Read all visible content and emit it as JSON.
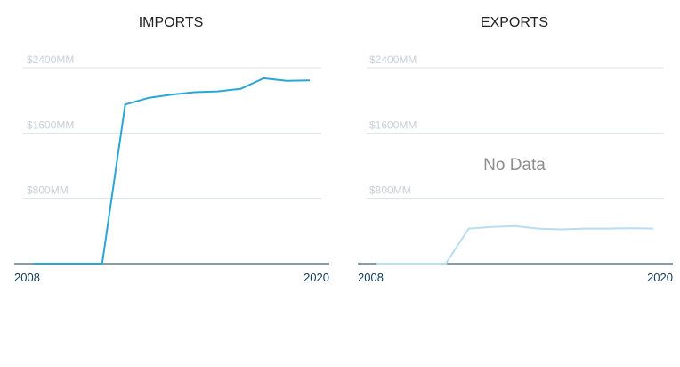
{
  "chart_data": [
    {
      "type": "line",
      "title": "IMPORTS",
      "ylim": [
        0,
        2400
      ],
      "yticks": [
        800,
        1600,
        2400
      ],
      "ytick_labels": [
        "$800MM",
        "$1600MM",
        "$2400MM"
      ],
      "xlim": [
        2008,
        2020
      ],
      "xtick_labels": [
        "2008",
        "2020"
      ],
      "grid": true,
      "series": [
        {
          "color": "#2aa6d6",
          "x": [
            2008,
            2009,
            2010,
            2011,
            2012,
            2013,
            2014,
            2015,
            2016,
            2017,
            2018,
            2019,
            2020
          ],
          "y": [
            0,
            0,
            0,
            0,
            1950,
            2030,
            2070,
            2100,
            2110,
            2140,
            2270,
            2240,
            2245
          ]
        }
      ],
      "no_data_text": ""
    },
    {
      "type": "line",
      "title": "EXPORTS",
      "ylim": [
        0,
        2400
      ],
      "yticks": [
        800,
        1600,
        2400
      ],
      "ytick_labels": [
        "$800MM",
        "$1600MM",
        "$2400MM"
      ],
      "xlim": [
        2008,
        2020
      ],
      "xtick_labels": [
        "2008",
        "2020"
      ],
      "grid": true,
      "series": [
        {
          "color": "#b7def0",
          "x": [
            2008,
            2009,
            2010,
            2011,
            2012,
            2013,
            2014,
            2015,
            2016,
            2017,
            2018,
            2019,
            2020
          ],
          "y": [
            0,
            0,
            0,
            0,
            430,
            450,
            460,
            430,
            420,
            430,
            430,
            435,
            430
          ]
        }
      ],
      "no_data_text": "No Data"
    }
  ],
  "colors": {
    "axis": "#123a5a",
    "grid": "#dde2e7",
    "ytick": "#c9d0d8",
    "title": "#222222",
    "no_data": "#8d8d8d"
  }
}
